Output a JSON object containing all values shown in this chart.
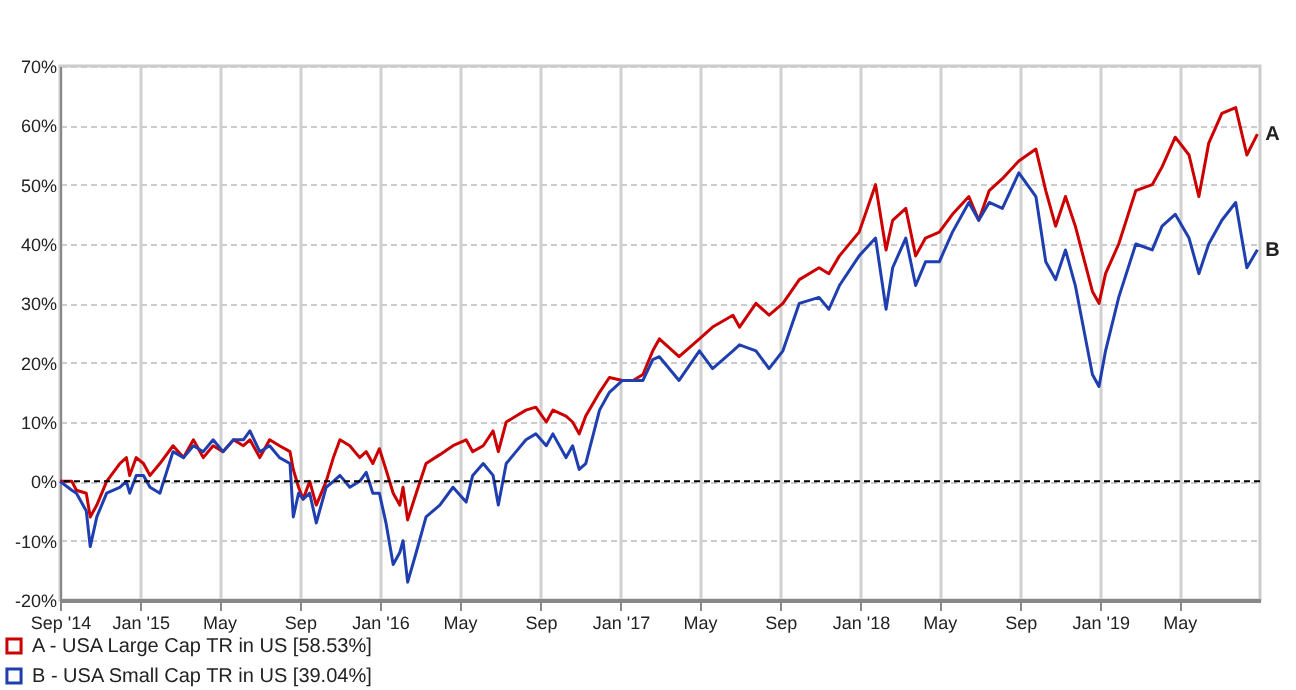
{
  "chart_data": {
    "type": "line",
    "x": [
      "2014-09-01",
      "2014-09-19",
      "2014-09-26",
      "2014-10-11",
      "2014-10-17",
      "2014-10-27",
      "2014-11-11",
      "2014-12-01",
      "2014-12-11",
      "2014-12-16",
      "2014-12-26",
      "2015-01-06",
      "2015-01-16",
      "2015-01-31",
      "2015-02-20",
      "2015-03-08",
      "2015-03-23",
      "2015-04-07",
      "2015-04-22",
      "2015-05-07",
      "2015-05-23",
      "2015-06-07",
      "2015-06-17",
      "2015-07-02",
      "2015-07-17",
      "2015-08-01",
      "2015-08-17",
      "2015-08-22",
      "2015-08-30",
      "2015-09-06",
      "2015-09-16",
      "2015-09-26",
      "2015-10-11",
      "2015-10-22",
      "2015-11-01",
      "2015-11-16",
      "2015-12-01",
      "2015-12-11",
      "2015-12-21",
      "2015-12-31",
      "2016-01-10",
      "2016-01-21",
      "2016-01-31",
      "2016-02-05",
      "2016-02-12",
      "2016-02-25",
      "2016-03-11",
      "2016-04-01",
      "2016-04-21",
      "2016-05-11",
      "2016-05-21",
      "2016-06-06",
      "2016-06-21",
      "2016-06-29",
      "2016-07-11",
      "2016-07-26",
      "2016-08-10",
      "2016-08-25",
      "2016-09-10",
      "2016-09-20",
      "2016-10-10",
      "2016-10-20",
      "2016-10-30",
      "2016-11-09",
      "2016-11-30",
      "2016-12-15",
      "2017-01-04",
      "2017-01-20",
      "2017-02-04",
      "2017-02-19",
      "2017-03-01",
      "2017-03-31",
      "2017-05-01",
      "2017-05-21",
      "2017-06-21",
      "2017-07-01",
      "2017-07-26",
      "2017-08-15",
      "2017-09-05",
      "2017-09-30",
      "2017-10-30",
      "2017-11-14",
      "2017-11-30",
      "2017-12-30",
      "2018-01-24",
      "2018-02-09",
      "2018-02-19",
      "2018-03-11",
      "2018-03-26",
      "2018-04-10",
      "2018-05-01",
      "2018-05-21",
      "2018-06-15",
      "2018-06-30",
      "2018-07-16",
      "2018-08-05",
      "2018-08-30",
      "2018-09-25",
      "2018-10-10",
      "2018-10-25",
      "2018-11-09",
      "2018-11-24",
      "2018-12-20",
      "2018-12-30",
      "2019-01-09",
      "2019-01-29",
      "2019-02-24",
      "2019-03-21",
      "2019-04-05",
      "2019-04-25",
      "2019-05-16",
      "2019-05-31",
      "2019-06-15",
      "2019-07-05",
      "2019-07-26",
      "2019-08-12",
      "2019-08-28"
    ],
    "series": [
      {
        "name": "A - USA Large Cap TR in US [58.53%]",
        "color": "#cc0000",
        "values": [
          0,
          0,
          -1.5,
          -2,
          -6,
          -4,
          0,
          3,
          4,
          1,
          4,
          3,
          1,
          3,
          6,
          4,
          7,
          4,
          6,
          5,
          7,
          6,
          7,
          4,
          7,
          6,
          5,
          2,
          -1,
          -3,
          0,
          -4,
          0,
          4,
          7,
          6,
          4,
          5,
          3,
          5.5,
          2,
          -2,
          -4,
          -1,
          -6.5,
          -2,
          3,
          4.5,
          6,
          7,
          5,
          6,
          8.5,
          5,
          10,
          11,
          12,
          12.5,
          10,
          12,
          11,
          10,
          8,
          11,
          15,
          17.5,
          17,
          17,
          18,
          22,
          24,
          21,
          24,
          26,
          28,
          26,
          30,
          28,
          30,
          34,
          36,
          35,
          38,
          42,
          50,
          39,
          44,
          46,
          38,
          41,
          42,
          45,
          48,
          44,
          49,
          51,
          54,
          56,
          49,
          43,
          48,
          43,
          32,
          30,
          35,
          40,
          49,
          50,
          53,
          58,
          55,
          48,
          57,
          62,
          63,
          55,
          58.53
        ]
      },
      {
        "name": "B - USA Small Cap TR in US [39.04%]",
        "color": "#1f3fb0",
        "values": [
          0,
          -1.5,
          -2,
          -5,
          -11,
          -6,
          -2,
          -1,
          0,
          -2,
          1,
          1,
          -1,
          -2,
          5,
          4,
          6,
          5,
          7,
          5,
          7,
          7,
          8.5,
          5,
          6,
          4,
          3,
          -6,
          -2,
          -3,
          -2,
          -7,
          -1,
          0,
          1,
          -1,
          0,
          1.5,
          -2,
          -2,
          -7,
          -14,
          -12,
          -10,
          -17,
          -12,
          -6,
          -4,
          -1,
          -3.5,
          1,
          3,
          1,
          -4,
          3,
          5,
          7,
          8,
          6,
          8,
          4,
          6,
          2,
          3,
          12,
          15,
          17,
          17,
          17,
          20.5,
          21,
          17,
          22,
          19,
          22,
          23,
          22,
          19,
          22,
          30,
          31,
          29,
          33,
          38,
          41,
          29,
          36,
          41,
          33,
          37,
          37,
          42,
          47,
          44,
          47,
          46,
          52,
          48,
          37,
          34,
          39,
          33,
          18,
          16,
          22,
          31,
          40,
          39,
          43,
          45,
          41,
          35,
          40,
          44,
          47,
          36,
          39.04
        ]
      }
    ],
    "xlim": [
      "2014-09-01",
      "2019-09-01"
    ],
    "xticks": [
      {
        "value": "2014-09-01",
        "label": "Sep '14"
      },
      {
        "value": "2015-01-01",
        "label": "Jan '15"
      },
      {
        "value": "2015-05-01",
        "label": "May"
      },
      {
        "value": "2015-09-01",
        "label": "Sep"
      },
      {
        "value": "2016-01-01",
        "label": "Jan '16"
      },
      {
        "value": "2016-05-01",
        "label": "May"
      },
      {
        "value": "2016-09-01",
        "label": "Sep"
      },
      {
        "value": "2017-01-01",
        "label": "Jan '17"
      },
      {
        "value": "2017-05-01",
        "label": "May"
      },
      {
        "value": "2017-09-01",
        "label": "Sep"
      },
      {
        "value": "2018-01-01",
        "label": "Jan '18"
      },
      {
        "value": "2018-05-01",
        "label": "May"
      },
      {
        "value": "2018-09-01",
        "label": "Sep"
      },
      {
        "value": "2019-01-01",
        "label": "Jan '19"
      },
      {
        "value": "2019-05-01",
        "label": "May"
      }
    ],
    "ylim": [
      -20,
      70
    ],
    "yticks": [
      {
        "value": -20,
        "label": "-20%"
      },
      {
        "value": -10,
        "label": "-10%"
      },
      {
        "value": 0,
        "label": "0%"
      },
      {
        "value": 10,
        "label": "10%"
      },
      {
        "value": 20,
        "label": "20%"
      },
      {
        "value": 30,
        "label": "30%"
      },
      {
        "value": 40,
        "label": "40%"
      },
      {
        "value": 50,
        "label": "50%"
      },
      {
        "value": 60,
        "label": "60%"
      },
      {
        "value": 70,
        "label": "70%"
      }
    ],
    "ref_lines": [
      {
        "axis": "y",
        "value": 0,
        "color": "#000000",
        "line_style": "dashed"
      }
    ],
    "annotations": [
      {
        "text": "A",
        "x": "2019-08-28",
        "y": 58.53
      },
      {
        "text": "B",
        "x": "2019-08-28",
        "y": 39.04
      }
    ],
    "grid": true,
    "legend": "bottom"
  }
}
